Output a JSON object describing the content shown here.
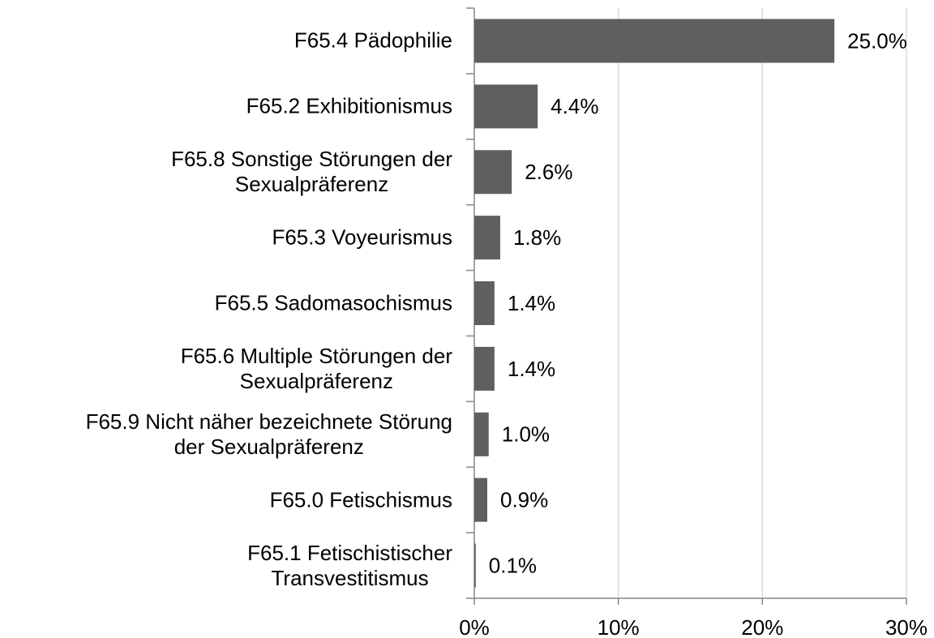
{
  "chart_data": {
    "type": "bar",
    "orientation": "horizontal",
    "categories": [
      "F65.4 Pädophilie",
      "F65.2 Exhibitionismus",
      "F65.8 Sonstige Störungen der\nSexualpräferenz",
      "F65.3 Voyeurismus",
      "F65.5 Sadomasochismus",
      "F65.6 Multiple Störungen der\nSexualpräferenz",
      "F65.9 Nicht näher bezeichnete Störung\nder Sexualpräferenz",
      "F65.0 Fetischismus",
      "F65.1 Fetischistischer\nTransvestitismus"
    ],
    "values": [
      25.0,
      4.4,
      2.6,
      1.8,
      1.4,
      1.4,
      1.0,
      0.9,
      0.1
    ],
    "value_labels": [
      "25.0%",
      "4.4%",
      "2.6%",
      "1.8%",
      "1.4%",
      "1.4%",
      "1.0%",
      "0.9%",
      "0.1%"
    ],
    "color": "#5f5f5f",
    "xlim": [
      0,
      30
    ],
    "xticks": [
      {
        "value": 0,
        "label": "0%"
      },
      {
        "value": 10,
        "label": "10%"
      },
      {
        "value": 20,
        "label": "20%"
      },
      {
        "value": 30,
        "label": "30%"
      }
    ],
    "grid": true
  }
}
